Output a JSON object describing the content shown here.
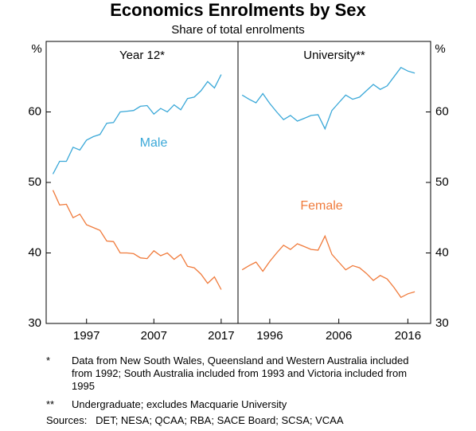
{
  "title": "Economics Enrolments by Sex",
  "subtitle": "Share of total enrolments",
  "notes": [
    {
      "mark": "*",
      "text": "Data from New South Wales, Queensland and Western Australia included from 1992; South Australia included from 1993 and Victoria included from 1995"
    },
    {
      "mark": "**",
      "text": "Undergraduate; excludes Macquarie University"
    }
  ],
  "sources": "Sources:   DET; NESA; QCAA; RBA; SACE Board; SCSA; VCAA",
  "chart_data": [
    {
      "type": "line",
      "title": "Year 12*",
      "ylabel": "%",
      "yaxis_side": "left",
      "x": [
        1992,
        1993,
        1994,
        1995,
        1996,
        1997,
        1998,
        1999,
        2000,
        2001,
        2002,
        2003,
        2004,
        2005,
        2006,
        2007,
        2008,
        2009,
        2010,
        2011,
        2012,
        2013,
        2014,
        2015,
        2016,
        2017
      ],
      "xlim": [
        1991,
        2019.5
      ],
      "xticks": [
        1997,
        2007,
        2017
      ],
      "ylim": [
        30,
        70
      ],
      "yticks": [
        30,
        40,
        50,
        60
      ],
      "series": [
        {
          "name": "Male",
          "color": "#3aa8d8",
          "values": [
            51.2,
            53,
            53,
            55,
            54.6,
            56,
            56.5,
            56.8,
            58.4,
            58.5,
            60,
            60.1,
            60.2,
            60.8,
            60.9,
            59.7,
            60.5,
            60,
            61,
            60.3,
            61.9,
            62.1,
            63,
            64.3,
            63.4,
            65.3
          ]
        },
        {
          "name": "Female",
          "color": "#f07b3c",
          "values": [
            48.9,
            46.8,
            46.9,
            45,
            45.5,
            44,
            43.6,
            43.2,
            41.7,
            41.6,
            40,
            40,
            39.9,
            39.3,
            39.2,
            40.3,
            39.6,
            40,
            39.1,
            39.8,
            38.1,
            37.9,
            37,
            35.7,
            36.6,
            34.8
          ]
        }
      ]
    },
    {
      "type": "line",
      "title": "University**",
      "ylabel": "%",
      "yaxis_side": "right",
      "x": [
        1992,
        1993,
        1994,
        1995,
        1996,
        1997,
        1998,
        1999,
        2000,
        2001,
        2002,
        2003,
        2004,
        2005,
        2006,
        2007,
        2008,
        2009,
        2010,
        2011,
        2012,
        2013,
        2014,
        2015,
        2016,
        2017
      ],
      "xlim": [
        1991.4,
        2019.3
      ],
      "xticks": [
        1996,
        2006,
        2016
      ],
      "ylim": [
        30,
        70
      ],
      "yticks": [
        30,
        40,
        50,
        60
      ],
      "series": [
        {
          "name": "Male",
          "color": "#3aa8d8",
          "values": [
            62.4,
            61.8,
            61.3,
            62.6,
            61.2,
            60,
            58.9,
            59.5,
            58.7,
            59.1,
            59.5,
            59.6,
            57.6,
            60.2,
            61.3,
            62.4,
            61.8,
            62.1,
            63,
            63.9,
            63.2,
            63.7,
            65,
            66.3,
            65.8,
            65.5
          ]
        },
        {
          "name": "Female",
          "color": "#f07b3c",
          "values": [
            37.6,
            38.2,
            38.7,
            37.4,
            38.8,
            40,
            41.1,
            40.5,
            41.3,
            40.9,
            40.5,
            40.4,
            42.4,
            39.8,
            38.7,
            37.6,
            38.2,
            37.9,
            37.1,
            36.1,
            36.8,
            36.3,
            35.1,
            33.7,
            34.2,
            34.5
          ]
        }
      ]
    }
  ]
}
